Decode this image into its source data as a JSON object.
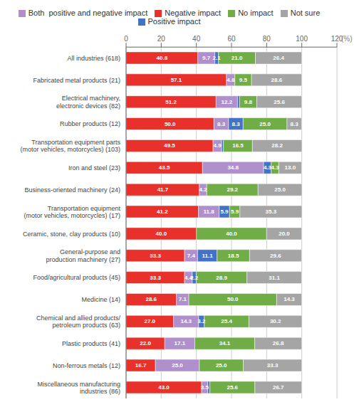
{
  "chart_data": {
    "type": "bar",
    "orientation": "horizontal",
    "stacked": true,
    "grid": true,
    "legend": "top",
    "data_labels": true,
    "xlabel": "(%)",
    "categories": [
      "All industries (618)",
      "Fabricated metal products (21)",
      "Electrical machinery,\nelectronic devices (82)",
      "Rubber products (12)",
      "Transportation equipment parts\n(motor vehicles, motorcycles) (103)",
      "Iron and steel (23)",
      "Business-oriented machinery (24)",
      "Transportation equipment\n(motor vehicles, motorcycles) (17)",
      "Ceramic, stone, clay products (10)",
      "General-purpose and\nproduction machinery (27)",
      "Food/agricultural products (45)",
      "Medicine (14)",
      "Chemical and allied products/\npetroleum products (63)",
      "Plastic products (41)",
      "Non-ferrous metals (12)",
      "Miscellaneous manufacturing\nindustries (86)"
    ],
    "xlim": [
      0,
      120
    ],
    "xticks": [
      0,
      20,
      40,
      60,
      80,
      100,
      120
    ],
    "series": [
      {
        "name": "Negative impact",
        "color": "#e8312a",
        "values": [
          40.8,
          57.1,
          51.2,
          50.0,
          49.5,
          43.5,
          41.7,
          41.2,
          40.0,
          33.3,
          33.3,
          28.6,
          27.0,
          22.0,
          16.7,
          43.0
        ],
        "value_labels": [
          "40.8",
          "57.1",
          "51.2",
          "50.0",
          "49.5",
          "43.5",
          "41.7",
          "41.2",
          "40.0",
          "33.3",
          "33.3",
          "28.6",
          "27.0",
          "22.0",
          "16.7",
          "43.0"
        ]
      },
      {
        "name": "Both  positive and negative impact",
        "color": "#b090cc",
        "values": [
          9.7,
          4.8,
          12.2,
          8.3,
          4.9,
          34.8,
          4.2,
          11.8,
          0.0,
          7.4,
          4.4,
          7.1,
          14.3,
          17.1,
          25.0,
          3.5
        ],
        "value_labels": [
          "9.7",
          "4.8",
          "12.2",
          "8.3",
          "4.9",
          "34.8",
          "4.2",
          "11.8",
          null,
          "7.4",
          "4.4",
          "7.1",
          "14.3",
          "17.1",
          "25.0",
          "3.5"
        ]
      },
      {
        "name": "Positive impact",
        "color": "#4472c4",
        "values": [
          2.1,
          0.0,
          1.2,
          8.3,
          1.0,
          4.3,
          0.0,
          5.9,
          0.0,
          11.1,
          2.2,
          0.0,
          3.2,
          0.0,
          0.0,
          1.2
        ],
        "value_labels": [
          "2.1",
          null,
          null,
          "8.3",
          null,
          "4.3",
          null,
          "5.9",
          null,
          "11.1",
          "2.2",
          null,
          "3.2",
          null,
          null,
          null
        ]
      },
      {
        "name": "No impact",
        "color": "#70ad47",
        "values": [
          21.0,
          9.5,
          9.8,
          25.0,
          16.5,
          4.3,
          29.2,
          5.9,
          40.0,
          18.5,
          28.9,
          50.0,
          25.4,
          34.1,
          25.0,
          25.6
        ],
        "value_labels": [
          "21.0",
          "9.5",
          "9.8",
          "25.0",
          "16.5",
          "4.3",
          "29.2",
          "5.9",
          "40.0",
          "18.5",
          "28.9",
          "50.0",
          "25.4",
          "34.1",
          "25.0",
          "25.6"
        ]
      },
      {
        "name": "Not sure",
        "color": "#a5a5a5",
        "values": [
          26.4,
          28.6,
          25.6,
          8.3,
          28.2,
          13.0,
          25.0,
          35.3,
          20.0,
          29.6,
          31.1,
          14.3,
          30.2,
          26.8,
          33.3,
          26.7
        ],
        "value_labels": [
          "26.4",
          "28.6",
          "25.6",
          "8.3",
          "28.2",
          "13.0",
          "25.0",
          "35.3",
          "20.0",
          "29.6",
          "31.1",
          "14.3",
          "30.2",
          "26.8",
          "33.3",
          "26.7"
        ]
      }
    ]
  }
}
